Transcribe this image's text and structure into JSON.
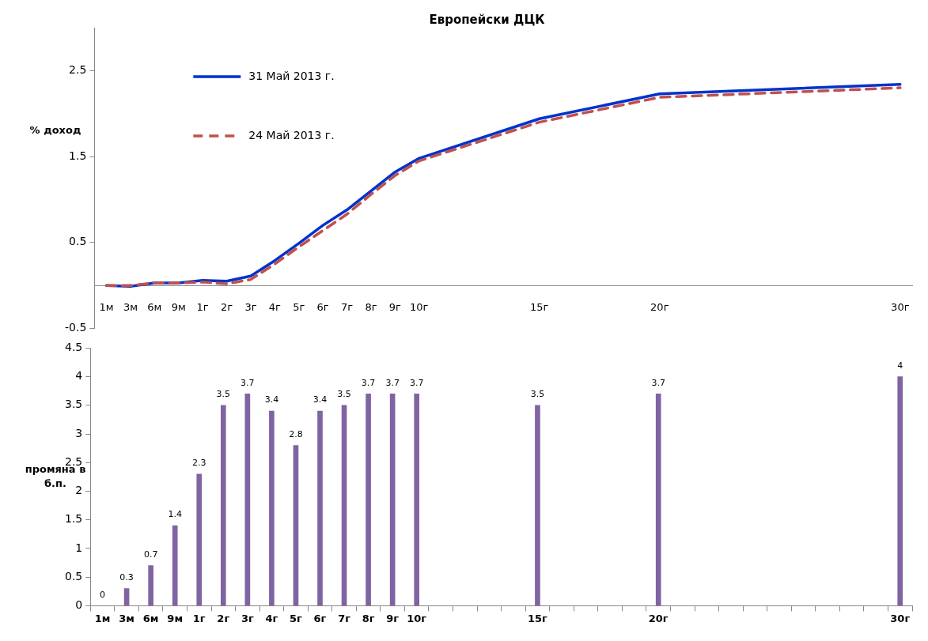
{
  "chart_data": [
    {
      "type": "line",
      "title": "Европейски ДЦК",
      "ylabel": "% доход",
      "categories": [
        "1м",
        "3м",
        "6м",
        "9м",
        "1г",
        "2г",
        "3г",
        "4г",
        "5г",
        "6г",
        "7г",
        "8г",
        "9г",
        "10г",
        null,
        null,
        null,
        null,
        "15г",
        null,
        null,
        null,
        null,
        "20г",
        null,
        null,
        null,
        null,
        null,
        null,
        null,
        null,
        null,
        "30г"
      ],
      "series": [
        {
          "name": "31 Май 2013 г.",
          "color": "#0033cc",
          "line_style": "solid",
          "values": [
            0.0,
            -0.01,
            0.03,
            0.03,
            0.06,
            0.05,
            0.11,
            0.29,
            0.49,
            0.7,
            0.88,
            1.1,
            1.32,
            1.48,
            null,
            null,
            null,
            null,
            1.94,
            null,
            null,
            null,
            null,
            2.23,
            null,
            null,
            null,
            null,
            null,
            null,
            null,
            null,
            null,
            2.34
          ]
        },
        {
          "name": "24 Май 2013 г.",
          "color": "#c0504d",
          "line_style": "dashed",
          "values": [
            0.0,
            0.0,
            0.03,
            0.03,
            0.04,
            0.02,
            0.07,
            0.25,
            0.45,
            0.64,
            0.83,
            1.06,
            1.28,
            1.45,
            null,
            null,
            null,
            null,
            1.9,
            null,
            null,
            null,
            null,
            2.19,
            null,
            null,
            null,
            null,
            null,
            null,
            null,
            null,
            null,
            2.3
          ]
        }
      ],
      "ylim": [
        -0.5,
        3
      ],
      "yticks": [
        -0.5,
        0.5,
        1.5,
        2.5
      ],
      "grid": false,
      "legend": "top left",
      "marker": "none"
    },
    {
      "type": "bar",
      "ylabel": "промяна в б.п.",
      "categories": [
        "1м",
        "3м",
        "6м",
        "9м",
        "1г",
        "2г",
        "3г",
        "4г",
        "5г",
        "6г",
        "7г",
        "8г",
        "9г",
        "10г",
        null,
        null,
        null,
        null,
        "15г",
        null,
        null,
        null,
        null,
        "20г",
        null,
        null,
        null,
        null,
        null,
        null,
        null,
        null,
        null,
        "30г"
      ],
      "values": [
        0,
        0.3,
        0.7,
        1.4,
        2.3,
        3.5,
        3.7,
        3.4,
        2.8,
        3.4,
        3.5,
        3.7,
        3.7,
        3.7,
        null,
        null,
        null,
        null,
        3.5,
        null,
        null,
        null,
        null,
        3.7,
        null,
        null,
        null,
        null,
        null,
        null,
        null,
        null,
        null,
        4
      ],
      "color": "#8064a2",
      "ylim": [
        0,
        4.5
      ],
      "yticks": [
        0,
        0.5,
        1,
        1.5,
        2,
        2.5,
        3,
        3.5,
        4,
        4.5
      ],
      "grid": false,
      "data_labels": true
    }
  ]
}
